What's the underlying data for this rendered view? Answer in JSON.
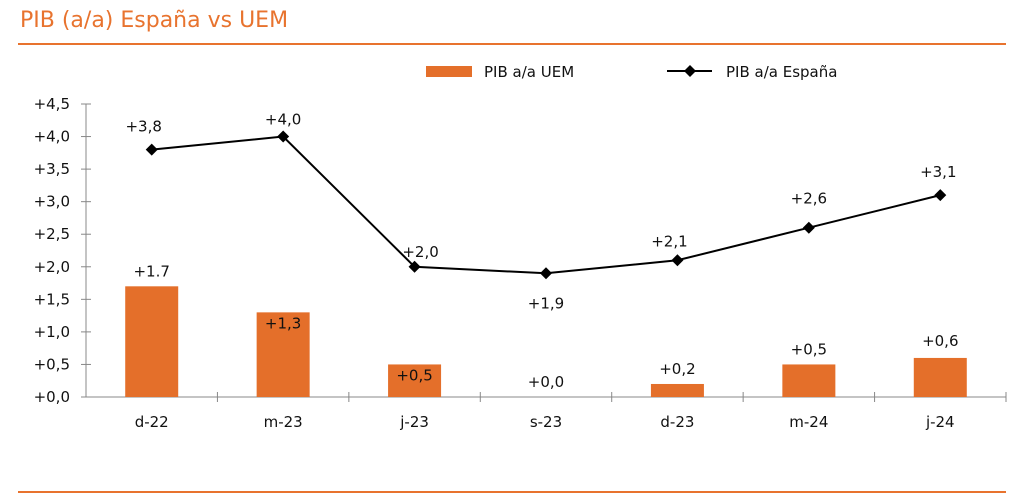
{
  "title": "PIB (a/a) España vs UEM",
  "chart_data": {
    "type": "bar+line",
    "title": "PIB (a/a) España vs UEM",
    "categories": [
      "d-22",
      "m-23",
      "j-23",
      "s-23",
      "d-23",
      "m-24",
      "j-24"
    ],
    "series": [
      {
        "name": "PIB a/a UEM",
        "type": "bar",
        "color": "#e46f2a",
        "values": [
          1.7,
          1.3,
          0.5,
          0.0,
          0.2,
          0.5,
          0.6
        ],
        "labels": [
          "+1.7",
          "+1,3",
          "+0,5",
          "+0,0",
          "+0,2",
          "+0,5",
          "+0,6"
        ]
      },
      {
        "name": "PIB a/a España",
        "type": "line",
        "color": "#000000",
        "values": [
          3.8,
          4.0,
          2.0,
          1.9,
          2.1,
          2.6,
          3.1
        ],
        "labels": [
          "+3,8",
          "+4,0",
          "+2,0",
          "+1,9",
          "+2,1",
          "+2,6",
          "+3,1"
        ]
      }
    ],
    "yticks": [
      "+0,0",
      "+0,5",
      "+1,0",
      "+1,5",
      "+2,0",
      "+2,5",
      "+3,0",
      "+3,5",
      "+4,0",
      "+4,5"
    ],
    "ylim": [
      0,
      4.5
    ],
    "xlabel": "",
    "ylabel": "",
    "legend": "top-right",
    "grid": false
  }
}
